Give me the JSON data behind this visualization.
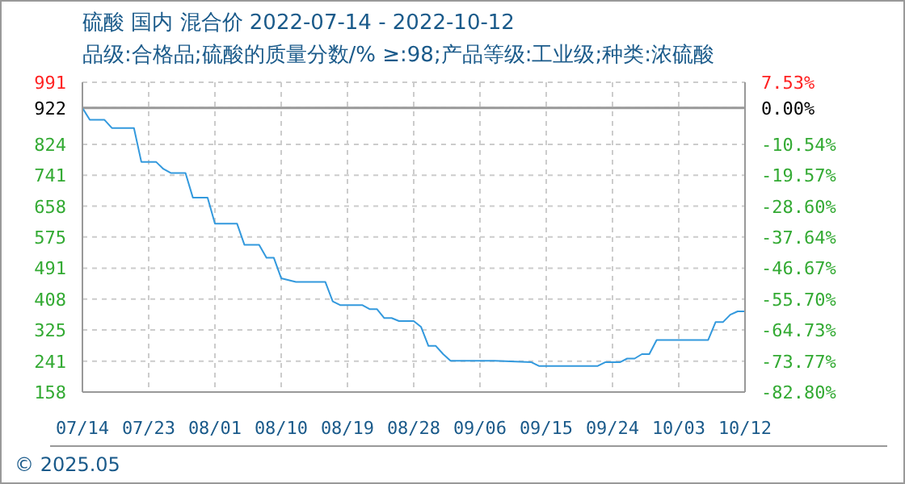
{
  "chart_data": {
    "type": "line",
    "title": "硫酸 国内 混合价 2022-07-14 - 2022-10-12",
    "subtitle": "品级:合格品;硫酸的质量分数/% ≥:98;产品等级:工业级;种类:浓硫酸",
    "annotations": [
      "© 2025.05"
    ],
    "x": [
      "2022-07-14",
      "2022-07-15",
      "2022-07-17",
      "2022-07-18",
      "2022-07-21",
      "2022-07-22",
      "2022-07-24",
      "2022-07-25",
      "2022-07-26",
      "2022-07-28",
      "2022-07-29",
      "2022-07-31",
      "2022-08-01",
      "2022-08-04",
      "2022-08-05",
      "2022-08-07",
      "2022-08-08",
      "2022-08-09",
      "2022-08-10",
      "2022-08-12",
      "2022-08-16",
      "2022-08-17",
      "2022-08-18",
      "2022-08-21",
      "2022-08-22",
      "2022-08-23",
      "2022-08-24",
      "2022-08-25",
      "2022-08-26",
      "2022-08-28",
      "2022-08-29",
      "2022-08-30",
      "2022-08-31",
      "2022-09-01",
      "2022-09-02",
      "2022-09-08",
      "2022-09-13",
      "2022-09-14",
      "2022-09-22",
      "2022-09-23",
      "2022-09-25",
      "2022-09-26",
      "2022-09-27",
      "2022-09-28",
      "2022-09-29",
      "2022-09-30",
      "2022-10-07",
      "2022-10-08",
      "2022-10-09",
      "2022-10-10",
      "2022-10-11",
      "2022-10-12"
    ],
    "series": [
      {
        "color": "#3399dd",
        "values": [
          922,
          890,
          890,
          868,
          868,
          777,
          777,
          758,
          747,
          747,
          681,
          681,
          611,
          611,
          554,
          554,
          519,
          519,
          464,
          454,
          454,
          402,
          392,
          392,
          381,
          381,
          357,
          357,
          349,
          349,
          333,
          282,
          282,
          260,
          242,
          242,
          238,
          228,
          228,
          238,
          238,
          248,
          248,
          260,
          260,
          298,
          298,
          346,
          346,
          366,
          375,
          375
        ]
      }
    ],
    "xlim": [
      "2022-07-14",
      "2022-10-12"
    ],
    "xticks": [
      {
        "value": "2022-07-14",
        "label": "07/14"
      },
      {
        "value": "2022-07-23",
        "label": "07/23"
      },
      {
        "value": "2022-08-01",
        "label": "08/01"
      },
      {
        "value": "2022-08-10",
        "label": "08/10"
      },
      {
        "value": "2022-08-19",
        "label": "08/19"
      },
      {
        "value": "2022-08-28",
        "label": "08/28"
      },
      {
        "value": "2022-09-06",
        "label": "09/06"
      },
      {
        "value": "2022-09-15",
        "label": "09/15"
      },
      {
        "value": "2022-09-24",
        "label": "09/24"
      },
      {
        "value": "2022-10-03",
        "label": "10/03"
      },
      {
        "value": "2022-10-12",
        "label": "10/12"
      }
    ],
    "ylim": [
      158,
      991
    ],
    "yticks": [
      158,
      241,
      325,
      408,
      491,
      575,
      658,
      741,
      824,
      922,
      991
    ],
    "y2lim": [
      -82.8,
      7.53
    ],
    "y2ticks": [
      {
        "value": -82.8,
        "label": "-82.80%"
      },
      {
        "value": -73.77,
        "label": "-73.77%"
      },
      {
        "value": -64.73,
        "label": "-64.73%"
      },
      {
        "value": -55.7,
        "label": "-55.70%"
      },
      {
        "value": -46.67,
        "label": "-46.67%"
      },
      {
        "value": -37.64,
        "label": "-37.64%"
      },
      {
        "value": -28.6,
        "label": "-28.60%"
      },
      {
        "value": -19.57,
        "label": "-19.57%"
      },
      {
        "value": -10.54,
        "label": "-10.54%"
      },
      {
        "value": 0,
        "label": "0.00%"
      },
      {
        "value": 7.53,
        "label": "7.53%"
      }
    ],
    "ref_lines": [
      {
        "axis": "y",
        "value": 922,
        "color": "#999999"
      }
    ],
    "grid": true,
    "marker": "none",
    "line_style": "solid"
  }
}
